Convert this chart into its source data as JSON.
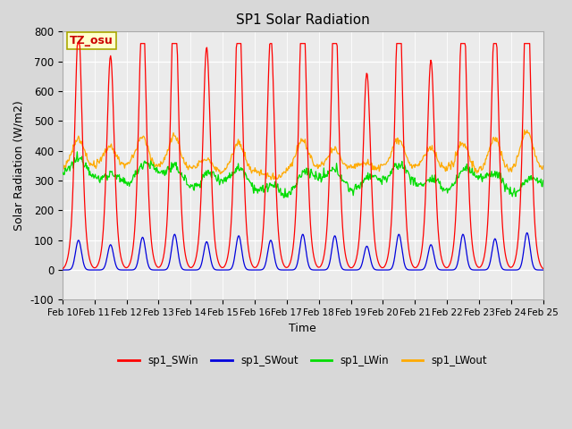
{
  "title": "SP1 Solar Radiation",
  "xlabel": "Time",
  "ylabel": "Solar Radiation (W/m2)",
  "ylim": [
    -100,
    800
  ],
  "xtick_labels": [
    "Feb 10",
    "Feb 11",
    "Feb 12",
    "Feb 13",
    "Feb 14",
    "Feb 15",
    "Feb 16",
    "Feb 17",
    "Feb 18",
    "Feb 19",
    "Feb 20",
    "Feb 21",
    "Feb 22",
    "Feb 23",
    "Feb 24",
    "Feb 25"
  ],
  "ytick_values": [
    -100,
    0,
    100,
    200,
    300,
    400,
    500,
    600,
    700,
    800
  ],
  "colors": {
    "SWin": "#ff0000",
    "SWout": "#0000dd",
    "LWin": "#00dd00",
    "LWout": "#ffaa00"
  },
  "bg_color": "#d8d8d8",
  "plot_bg": "#ebebeb",
  "legend_labels": [
    "sp1_SWin",
    "sp1_SWout",
    "sp1_LWin",
    "sp1_LWout"
  ],
  "annotation_text": "TZ_osu",
  "annotation_color": "#cc0000",
  "annotation_bg": "#ffffcc",
  "annotation_border": "#aaa800",
  "SWin_peaks": [
    0.56,
    0.5,
    0.63,
    0.68,
    0.52,
    0.65,
    0.55,
    0.67,
    0.65,
    0.46,
    0.67,
    0.49,
    0.67,
    0.6,
    0.7,
    0.71
  ],
  "SWout_peaks": [
    0.1,
    0.085,
    0.11,
    0.12,
    0.095,
    0.115,
    0.1,
    0.12,
    0.115,
    0.08,
    0.12,
    0.085,
    0.12,
    0.105,
    0.125,
    0.125
  ],
  "LWout_day_peaks": [
    0.44,
    0.41,
    0.44,
    0.45,
    0.385,
    0.44,
    0.325,
    0.44,
    0.4,
    0.355,
    0.44,
    0.415,
    0.44,
    0.455,
    0.475,
    0.48
  ]
}
